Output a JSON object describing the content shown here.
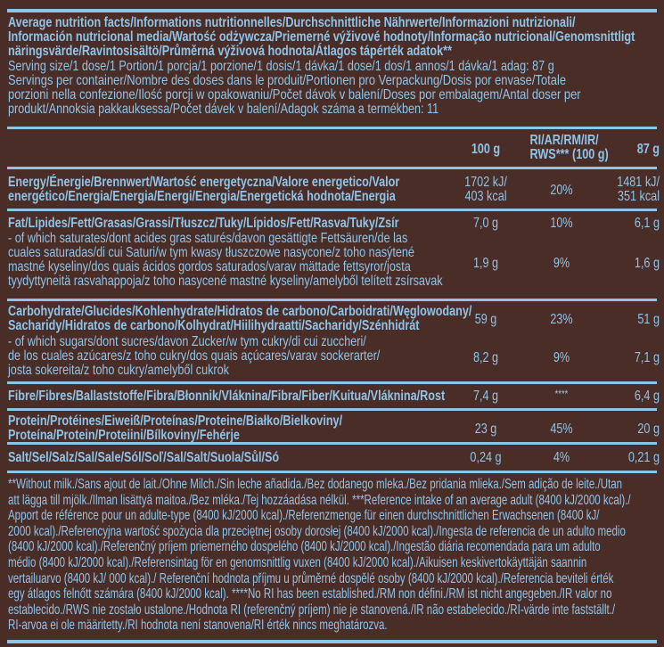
{
  "colors": {
    "background": "#4b2d28",
    "text": "#8ec4e8"
  },
  "header": {
    "title_lines": [
      "Average nutrition facts/Informations nutritionnelles/Durchschnittliche Nährwerte/Informazioni nutrizionali/",
      "Información nutricional media/Wartość odżywcza/Priemerné výživové hodnoty/Informação nutricional/Genomsnittligt",
      "näringsvärde/Ravintosisältö/Průměrná výživová hodnota/Átlagos tápérték adatok**"
    ],
    "serving_lines": [
      "Serving size/1 dose/1 Portion/1 porcja/1 porzione/1 dosis/1 dávka/1 dose/1 dos/1 annos/1 dávka/1 adag: 87 g",
      "Servings per container/Nombre des doses dans le produit/Portionen pro Verpackung/Dosis por envase/Totale",
      "porzioni nella confezione/Ilość porcji w opakowaniu/Počet dávok v balení/Doses por embalagem/Antal doser per",
      "produkt/Annoksia pakkauksessa/Počet dávek v balení/Adagok száma a termékben: 11"
    ]
  },
  "columns": {
    "per100": "100 g",
    "ri_line1": "RI/AR/RM/IR/",
    "ri_line2": "RWS*** (100 g)",
    "perServing": "87 g"
  },
  "rows": {
    "energy": {
      "lines": [
        "Energy/Énergie/Brennwert/Wartość energetyczna/Valore energetico/Valor",
        "energético/Energia/Energia/Energi/Energia/Energetická hodnota/Energia"
      ],
      "v100_1": "1702 kJ/",
      "v100_2": "403 kcal",
      "ri": "20%",
      "vs_1": "1481 kJ/",
      "vs_2": "351 kcal"
    },
    "fat": {
      "lines": [
        "Fat/Lipides/Fett/Grasas/Grassi/Tłuszcz/Tuky/Lípidos/Fett/Rasva/Tuky/Zsír"
      ],
      "v100": "7,0 g",
      "ri": "10%",
      "vs": "6,1 g"
    },
    "saturates": {
      "lines": [
        "- of which saturates/dont acides gras saturés/davon gesättigte Fettsäuren/de las",
        "cuales saturadas/di cui Saturi/w tym kwasy tłuszczowe nasycone/z toho nasýtené",
        "mastné kyseliny/dos quais ácidos gordos saturados/varav mättade fettsyror/josta",
        "tyydyttyneitä rasvahappoja/z toho nasycené mastné kyseliny/amelyből telített zsírsavak"
      ],
      "v100": "1,9 g",
      "ri": "9%",
      "vs": "1,6 g"
    },
    "carbs": {
      "lines": [
        "Carbohydrate/Glucides/Kohlenhydrate/Hidratos de carbono/Carboidrati/Węglowodany/",
        "Sacharidy/Hidratos de carbono/Kolhydrat/Hiilihydraatti/Sacharidy/Szénhidrát"
      ],
      "v100": "59 g",
      "ri": "23%",
      "vs": "51 g"
    },
    "sugars": {
      "lines": [
        "- of which sugars/dont sucres/davon Zucker/w tym cukry/di cui zuccheri/",
        "de los cuales azúcares/z toho cukry/dos quais açúcares/varav sockerarter/",
        "josta sokereita/z toho cukry/amelyből cukrok"
      ],
      "v100": "8,2 g",
      "ri": "9%",
      "vs": "7,1 g"
    },
    "fibre": {
      "lines": [
        "Fibre/Fibres/Ballaststoffe/Fibra/Błonnik/Vláknina/Fibra/Fiber/Kuitua/Vláknina/Rost"
      ],
      "v100": "7,4 g",
      "ri": "****",
      "vs": "6,4 g"
    },
    "protein": {
      "lines": [
        "Protein/Protéines/Eiweiß/Proteínas/Proteine/Białko/Bielkoviny/",
        "Proteína/Protein/Proteiini/Bílkoviny/Fehérje"
      ],
      "v100": "23 g",
      "ri": "45%",
      "vs": "20 g"
    },
    "salt": {
      "lines": [
        "Salt/Sel/Salz/Sal/Sale/Sól/Soľ/Sal/Salt/Suola/Sůl/Só"
      ],
      "v100": "0,24 g",
      "ri": "4%",
      "vs": "0,21 g"
    }
  },
  "footnote_lines": [
    "**Without milk./Sans ajout de lait./Ohne Milch./Sin leche añadida./Bez dodanego mleka./Bez pridania mlieka./Sem adição de leite./Utan",
    "att lägga till mjölk./Ilman lisättyä maitoa./Bez mléka./Tej hozzáadása nélkül. ***Reference intake of an average adult (8400 kJ/2000 kcal)./",
    "Apport de référence pour un adulte-type (8400 kJ/2000 kcal)./Referenzmenge für einen durchschnittlichen Erwachsenen (8400 kJ/",
    "2000 kcal)./Referencyjna wartość spożycia dla przeciętnej osoby dorosłej (8400 kJ/2000 kcal)./Ingesta de referencia de un adulto medio",
    "(8400 kJ/2000 kcal)./Referenčný príjem priemerného dospelého (8400 kJ/2000 kcal)./Ingestão diária recomendada para um adulto",
    "médio (8400 kJ/2000 kcal)./Referensintag för en genomsnittlig vuxen (8400 kJ/2000 kcal)./Aikuisen keskivertokäyttäjän saannin",
    "vertailuarvo (8400 kJ/ 000 kcal)./ Referenční hodnota příjmu u průměrné dospělé osoby (8400 kJ/2000 kcal)./Referencia beviteli érték",
    "egy átlagos felnőtt számára (8400 kJ/2000 kcal). ****No RI has been established./RM non défini./RM ist nicht angegeben./IR valor no",
    "establecido./RWS nie zostało ustalone./Hodnota RI (referenčný príjem) nie je stanovená./IR não estabelecido./RI-värde inte fastställt./",
    "RI-arvoa ei ole määritetty./RI hodnota není stanovena/RI érték nincs meghatározva."
  ]
}
